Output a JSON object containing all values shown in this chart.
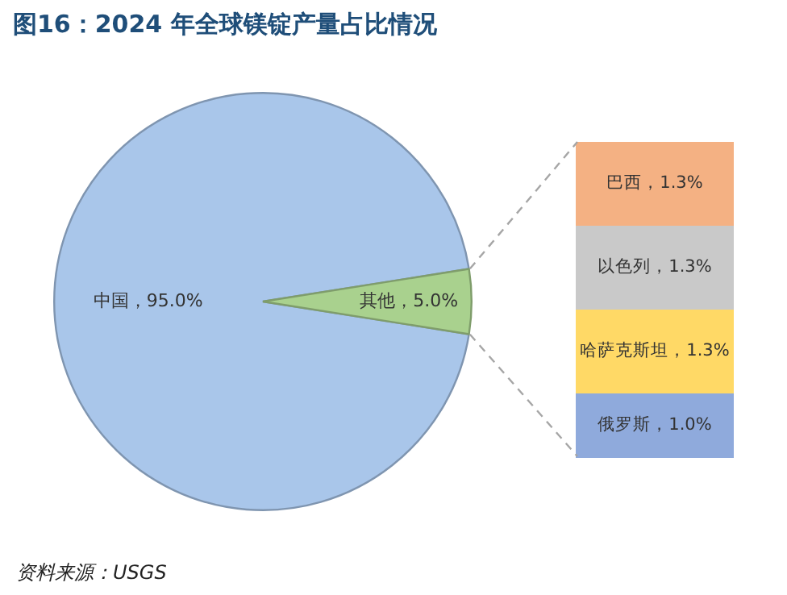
{
  "chart_data": [
    {
      "type": "pie",
      "title": "图16：2024 年全球镁锭产量占比情况",
      "categories": [
        "中国",
        "其他"
      ],
      "values": [
        95.0,
        5.0
      ],
      "colors": [
        "#a9c6ea",
        "#a9d18e"
      ],
      "value_labels": [
        "，95.0%",
        "，5.0%"
      ],
      "legend": false,
      "annotations": [
        "资料来源：USGS"
      ]
    },
    {
      "type": "bar",
      "stacked": true,
      "categories": [
        null
      ],
      "tick_labels": false,
      "legend": false,
      "series": [
        {
          "name": "俄罗斯",
          "color": "#8faadc",
          "values": [
            1.0
          ],
          "value_labels": [
            "，1.0%"
          ]
        },
        {
          "name": "哈萨克斯坦",
          "color": "#ffd966",
          "values": [
            1.3
          ],
          "value_labels": [
            "，1.3%"
          ]
        },
        {
          "name": "以色列",
          "color": "#c9c9c9",
          "values": [
            1.3
          ],
          "value_labels": [
            "，1.3%"
          ]
        },
        {
          "name": "巴西",
          "color": "#f4b183",
          "values": [
            1.3
          ],
          "value_labels": [
            "，1.3%"
          ]
        }
      ]
    }
  ]
}
